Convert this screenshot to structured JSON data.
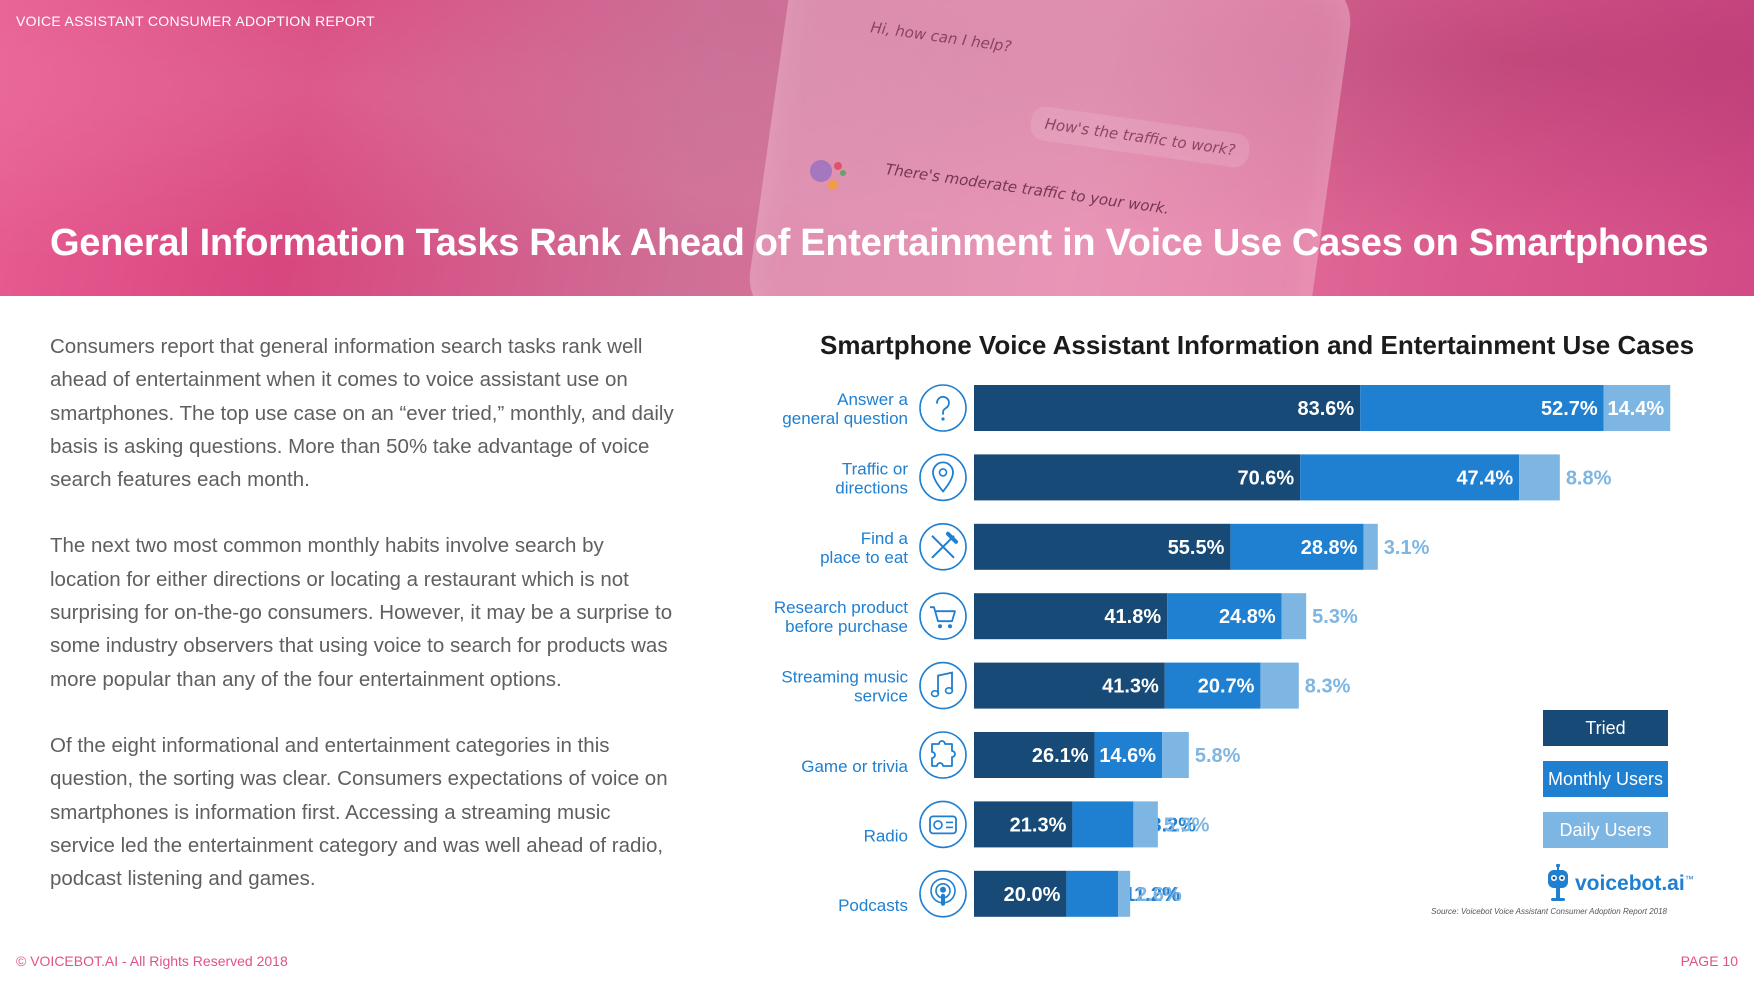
{
  "header": {
    "report_label": "VOICE ASSISTANT CONSUMER ADOPTION REPORT",
    "title": "General Information Tasks Rank Ahead of Entertainment in Voice Use Cases on Smartphones",
    "phone_bubbles": [
      "Hi, how can I help?",
      "How's the traffic to work?",
      "There's moderate traffic to your work."
    ]
  },
  "body": {
    "paragraphs": [
      "Consumers report that general information search tasks rank well ahead of entertainment when it comes to voice assistant use on smartphones. The top use case on an “ever tried,” monthly, and daily basis is asking questions. More than 50% take advantage of voice search features each month.",
      "The next two most common monthly habits involve search by location for either directions or locating a restaurant which is not surprising for on-the-go consumers. However, it may be a surprise to some industry observers that using voice to search for products was more popular than any of the four entertainment options.",
      "Of the eight informational and entertainment categories in this question, the sorting was clear. Consumers expectations of voice on smartphones is information first. Accessing a streaming music service led the entertainment category and was well ahead of radio, podcast listening and games."
    ]
  },
  "chart_data": {
    "type": "bar",
    "orientation": "horizontal",
    "title": "Smartphone Voice Assistant Information and Entertainment Use Cases",
    "categories": [
      "Answer a general question",
      "Traffic or directions",
      "Find a place to eat",
      "Research product before purchase",
      "Streaming music service",
      "Game or trivia",
      "Radio",
      "Podcasts"
    ],
    "category_lines": [
      [
        "Answer a",
        "general question"
      ],
      [
        "Traffic or",
        "directions"
      ],
      [
        "Find a",
        "place to eat"
      ],
      [
        "Research product",
        "before purchase"
      ],
      [
        "Streaming music",
        "service"
      ],
      [
        "Game or trivia"
      ],
      [
        "Radio"
      ],
      [
        "Podcasts"
      ]
    ],
    "icons": [
      "question-icon",
      "location-pin-icon",
      "utensils-icon",
      "shopping-cart-icon",
      "music-note-icon",
      "puzzle-icon",
      "radio-icon",
      "podcast-icon"
    ],
    "series": [
      {
        "name": "Tried",
        "values": [
          83.6,
          70.6,
          55.5,
          41.8,
          41.3,
          26.1,
          21.3,
          20.0
        ],
        "color": "#174a76"
      },
      {
        "name": "Monthly Users",
        "values": [
          52.7,
          47.4,
          28.8,
          24.8,
          20.7,
          14.6,
          13.2,
          11.2
        ],
        "color": "#1f7fd0"
      },
      {
        "name": "Daily Users",
        "values": [
          14.4,
          8.8,
          3.1,
          5.3,
          8.3,
          5.8,
          5.3,
          2.6
        ],
        "color": "#7db5e3"
      }
    ],
    "value_labels": [
      [
        "83.6%",
        "52.7%",
        "14.4%"
      ],
      [
        "70.6%",
        "47.4%",
        "8.8%"
      ],
      [
        "55.5%",
        "28.8%",
        "3.1%"
      ],
      [
        "41.8%",
        "24.8%",
        "5.3%"
      ],
      [
        "41.3%",
        "20.7%",
        "8.3%"
      ],
      [
        "26.1%",
        "14.6%",
        "5.8%"
      ],
      [
        "21.3%",
        "13.2%",
        "5.3%"
      ],
      [
        "20.0%",
        "11.2%",
        "2.6%"
      ]
    ],
    "stacking": "segments stacked end to end",
    "legend_position": "right"
  },
  "legend": {
    "tried": "Tried",
    "monthly": "Monthly Users",
    "daily": "Daily Users"
  },
  "colors": {
    "tried": "#174a76",
    "monthly": "#1f7fd0",
    "daily": "#7db5e3",
    "label_blue": "#1f7fd0",
    "accent_pink": "#e0528a"
  },
  "logo": {
    "text": "voicebot.ai",
    "tm": "™"
  },
  "source": "Source: Voicebot Voice Assistant Consumer Adoption Report 2018",
  "footer": {
    "copyright": "© VOICEBOT.AI - All Rights Reserved 2018",
    "page": "PAGE 10"
  }
}
